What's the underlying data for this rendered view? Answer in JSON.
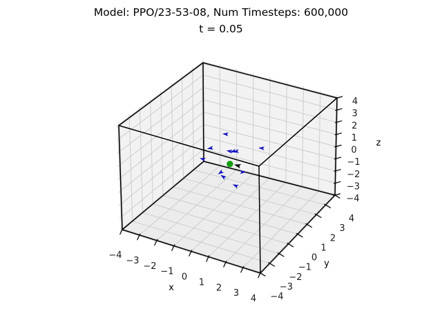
{
  "title": {
    "line1": "Model: PPO/23-53-08, Num Timesteps: 600,000",
    "line2": "t = 0.05"
  },
  "axes": {
    "x": {
      "label": "x",
      "tick_labels": [
        "−4",
        "−3",
        "−2",
        "−1",
        "0",
        "1",
        "2",
        "3",
        "4"
      ]
    },
    "y": {
      "label": "y",
      "tick_labels": [
        "−4",
        "−3",
        "−2",
        "−1",
        "0",
        "1",
        "2",
        "3",
        "4"
      ]
    },
    "z": {
      "label": "z",
      "tick_labels": [
        "−4",
        "−3",
        "−2",
        "−1",
        "0",
        "1",
        "2",
        "3",
        "4"
      ]
    }
  },
  "colors": {
    "background": "#ffffff",
    "pane_wall": "#f2f2f2",
    "pane_floor": "#ececec",
    "pane_halo": "#dcdcdc",
    "gridline": "#cdcdcd",
    "edge": "#000000",
    "tick_text": "#1a1a1a",
    "blue_marker": "#1414c0",
    "green_marker": "#12a012",
    "black_marker": "#000000"
  },
  "chart_data": {
    "type": "scatter",
    "projection": "3d",
    "title": "Model: PPO/23-53-08, Num Timesteps: 600,000",
    "subtitle": "t = 0.05",
    "xlabel": "x",
    "ylabel": "y",
    "zlabel": "z",
    "xlim": [
      -4,
      4
    ],
    "ylim": [
      -4,
      4
    ],
    "zlim": [
      -4,
      4
    ],
    "tick_values": [
      -4,
      -3,
      -2,
      -1,
      0,
      1,
      2,
      3,
      4
    ],
    "grid": true,
    "series": [
      {
        "name": "blue-agent-arrows",
        "marker": "arrow",
        "color": "#1414c0",
        "points": [
          {
            "x": -0.4,
            "y": 0.3,
            "z": 2.0,
            "heading_deg": 185
          },
          {
            "x": -1.0,
            "y": -0.2,
            "z": 1.0,
            "heading_deg": 170
          },
          {
            "x": 0.0,
            "y": 0.0,
            "z": 1.0,
            "heading_deg": 190
          },
          {
            "x": 0.17,
            "y": 0.08,
            "z": 1.0,
            "heading_deg": 165
          },
          {
            "x": 0.3,
            "y": 0.15,
            "z": 1.0,
            "heading_deg": 175
          },
          {
            "x": 1.6,
            "y": 0.5,
            "z": 1.5,
            "heading_deg": 185
          },
          {
            "x": -1.1,
            "y": -0.8,
            "z": 0.5,
            "heading_deg": 195
          },
          {
            "x": 0.65,
            "y": 0.15,
            "z": -0.5,
            "heading_deg": 0
          },
          {
            "x": -0.3,
            "y": -0.4,
            "z": -0.5,
            "heading_deg": 145
          },
          {
            "x": -0.15,
            "y": -0.4,
            "z": -0.8,
            "heading_deg": 215
          },
          {
            "x": 0.4,
            "y": -0.1,
            "z": -1.5,
            "heading_deg": 205
          }
        ]
      },
      {
        "name": "black-arrow",
        "marker": "arrow",
        "color": "#000000",
        "points": [
          {
            "x": 0.45,
            "y": 0.05,
            "z": 0.0,
            "heading_deg": 195
          }
        ]
      },
      {
        "name": "green-target",
        "marker": "circle",
        "color": "#12a012",
        "points": [
          {
            "x": 0.0,
            "y": 0.0,
            "z": 0.0
          }
        ]
      }
    ]
  }
}
